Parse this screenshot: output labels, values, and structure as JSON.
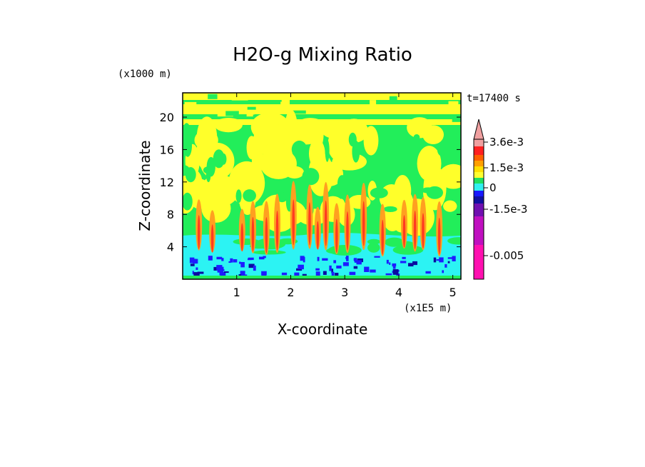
{
  "chart_data": {
    "type": "heatmap",
    "title": "H2O-g Mixing Ratio",
    "xlabel": "X-coordinate",
    "ylabel": "Z-coordinate",
    "x_unit": "(x1E5 m)",
    "y_unit": "(x1000 m)",
    "time_label": "t=17400 s",
    "xlim": [
      0,
      5.15
    ],
    "ylim": [
      0,
      23
    ],
    "x_ticks": [
      1,
      2,
      3,
      4,
      5
    ],
    "y_ticks": [
      4,
      8,
      12,
      16,
      20
    ],
    "colorbar": {
      "labels": [
        "3.6e-3",
        "1.5e-3",
        "0",
        "-1.5e-3",
        "-0.005"
      ],
      "colors": [
        "#f0a0a0",
        "#ff2020",
        "#ff6000",
        "#ffa000",
        "#ffe000",
        "#ffff30",
        "#20e060",
        "#30f0f0",
        "#1818ff",
        "#1010a0",
        "#7010b0",
        "#c010c0",
        "#ff10b0"
      ]
    },
    "contour_colors": {
      "green": "#22ee5a",
      "yellow": "#ffff2a",
      "orange": "#ffa020",
      "red": "#ff3b20",
      "cyan": "#2cf3f3",
      "blue": "#1d1dff",
      "navy": "#0a0aa0"
    }
  }
}
